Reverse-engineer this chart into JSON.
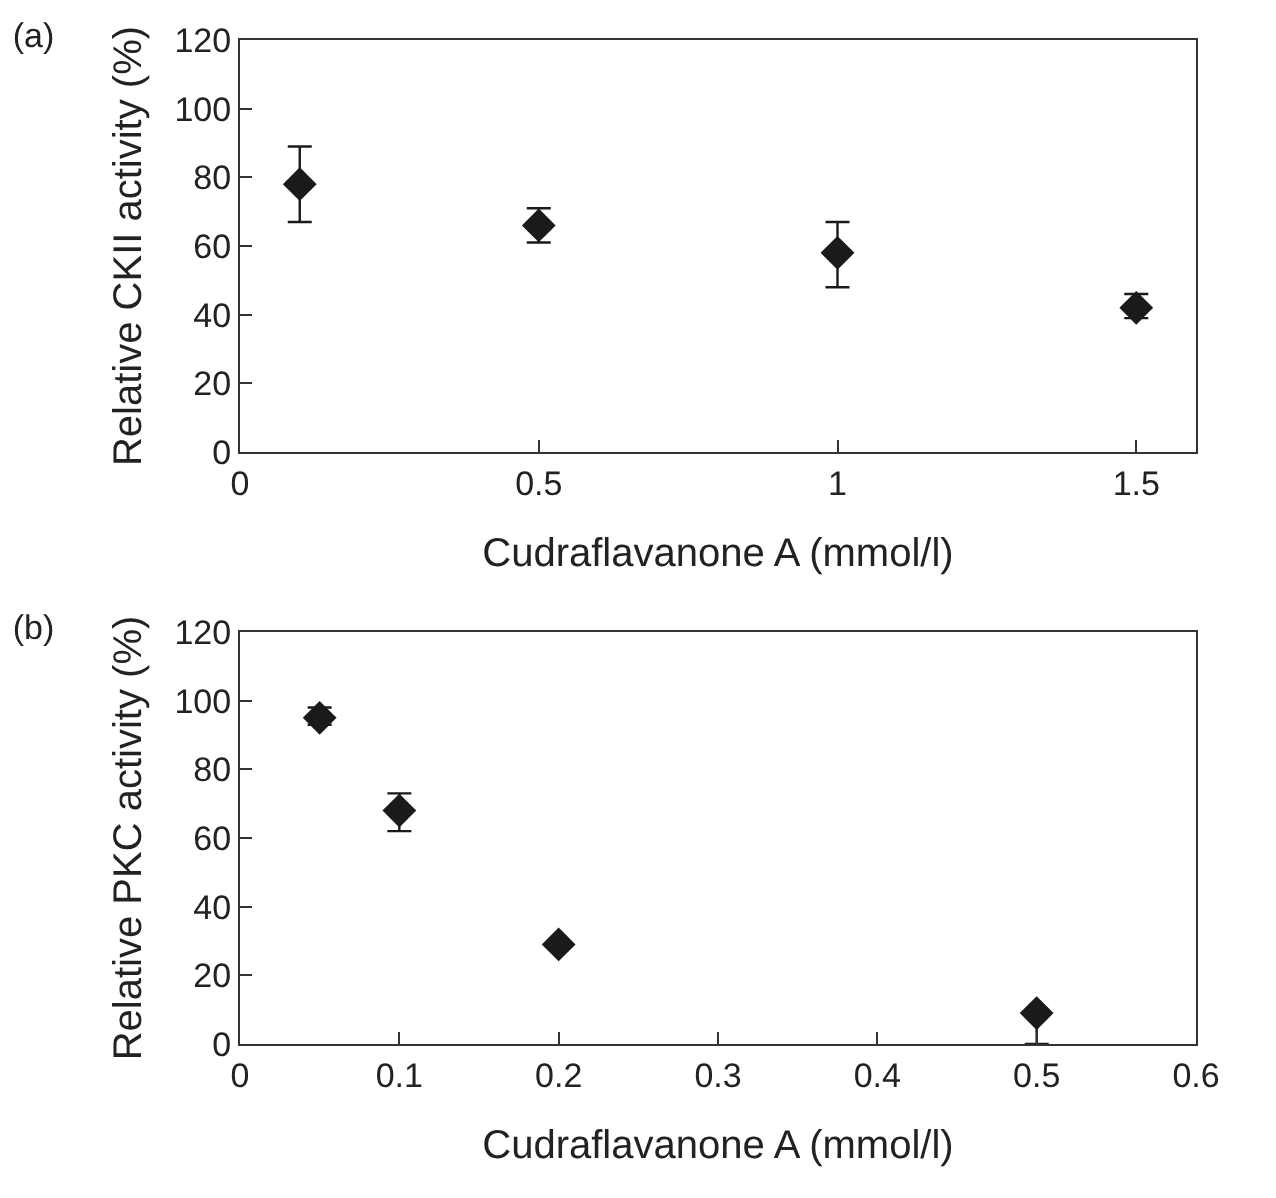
{
  "chart_data": [
    {
      "type": "scatter",
      "title": "(a)",
      "xlabel": "Cudraflavanone A (mmol/l)",
      "ylabel": "Relative CKII activity (%)",
      "x": [
        0.1,
        0.5,
        1,
        1.5
      ],
      "values": [
        78,
        66,
        58,
        42
      ],
      "errors": [
        [
          67,
          89
        ],
        [
          61,
          71
        ],
        [
          48,
          67
        ],
        [
          39,
          46
        ]
      ],
      "color": "#1a1a1a",
      "marker": "diamond",
      "xlim": [
        0,
        1.6
      ],
      "xticks": [
        0,
        0.5,
        1,
        1.5
      ],
      "ylim": [
        0,
        120
      ],
      "yticks": [
        0,
        20,
        40,
        60,
        80,
        100,
        120
      ],
      "grid": false
    },
    {
      "type": "scatter",
      "title": "(b)",
      "xlabel": "Cudraflavanone A (mmol/l)",
      "ylabel": "Relative PKC activity (%)",
      "x": [
        0.05,
        0.1,
        0.2,
        0.5
      ],
      "values": [
        95,
        68,
        29,
        9
      ],
      "errors": [
        [
          93,
          98
        ],
        [
          62,
          73
        ],
        null,
        [
          0,
          9
        ]
      ],
      "color": "#1a1a1a",
      "marker": "diamond",
      "xlim": [
        0,
        0.6
      ],
      "xticks": [
        0,
        0.1,
        0.2,
        0.3,
        0.4,
        0.5,
        0.6
      ],
      "ylim": [
        0,
        120
      ],
      "yticks": [
        0,
        20,
        40,
        60,
        80,
        100,
        120
      ],
      "grid": false
    }
  ]
}
